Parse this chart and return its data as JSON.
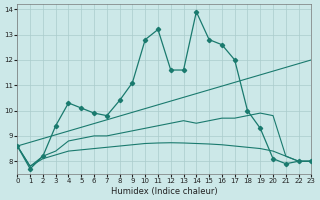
{
  "xlabel": "Humidex (Indice chaleur)",
  "bg_color": "#cce8e8",
  "grid_color": "#aacccc",
  "line_color": "#1a7a6e",
  "xlim": [
    0,
    23
  ],
  "ylim": [
    7.5,
    14.2
  ],
  "xticks": [
    0,
    1,
    2,
    3,
    4,
    5,
    6,
    7,
    8,
    9,
    10,
    11,
    12,
    13,
    14,
    15,
    16,
    17,
    18,
    19,
    20,
    21,
    22,
    23
  ],
  "yticks": [
    8,
    9,
    10,
    11,
    12,
    13,
    14
  ],
  "line1_x": [
    0,
    1,
    2,
    3,
    4,
    5,
    6,
    7,
    8,
    9,
    10,
    11,
    12,
    13,
    14,
    15,
    16,
    17,
    18,
    19,
    20,
    21,
    22,
    23
  ],
  "line1_y": [
    8.6,
    7.7,
    8.2,
    9.4,
    10.3,
    10.1,
    9.9,
    9.8,
    10.4,
    11.1,
    12.8,
    13.2,
    11.6,
    11.6,
    13.9,
    12.8,
    12.6,
    12.0,
    10.0,
    9.3,
    8.1,
    7.9,
    8.0,
    8.0
  ],
  "line2_x": [
    0,
    23
  ],
  "line2_y": [
    8.6,
    12.0
  ],
  "line3_x": [
    0,
    1,
    2,
    3,
    4,
    5,
    6,
    7,
    8,
    9,
    10,
    11,
    12,
    13,
    14,
    15,
    16,
    17,
    18,
    19,
    20,
    21,
    22,
    23
  ],
  "line3_y": [
    8.6,
    7.8,
    8.2,
    8.4,
    8.8,
    8.9,
    9.0,
    9.0,
    9.1,
    9.2,
    9.3,
    9.4,
    9.5,
    9.6,
    9.5,
    9.6,
    9.7,
    9.7,
    9.8,
    9.9,
    9.8,
    8.2,
    8.0,
    8.0
  ],
  "line4_x": [
    0,
    1,
    2,
    3,
    4,
    5,
    6,
    7,
    8,
    9,
    10,
    11,
    12,
    13,
    14,
    15,
    16,
    17,
    18,
    19,
    20,
    21,
    22,
    23
  ],
  "line4_y": [
    8.6,
    7.8,
    8.1,
    8.25,
    8.4,
    8.45,
    8.5,
    8.55,
    8.6,
    8.65,
    8.7,
    8.72,
    8.73,
    8.72,
    8.7,
    8.68,
    8.65,
    8.6,
    8.55,
    8.5,
    8.4,
    8.2,
    8.0,
    8.0
  ]
}
